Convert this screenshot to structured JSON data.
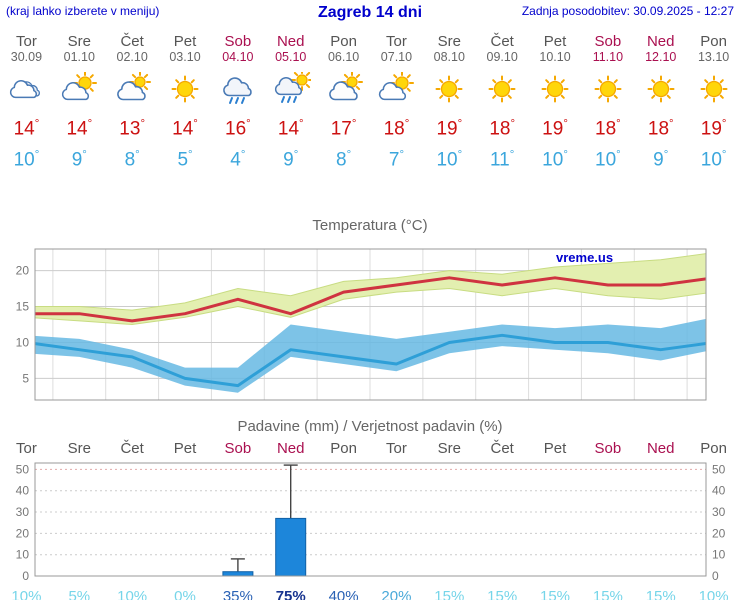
{
  "header": {
    "hint": "(kraj lahko izberete v meniju)",
    "title": "Zagreb 14 dni",
    "updated": "Zadnja posodobitev: 30.09.2025 - 12:27"
  },
  "symbols": {
    "degree": "°"
  },
  "watermark": "vreme.us",
  "days": [
    {
      "name": "Tor",
      "date": "30.09",
      "weekend": false,
      "icon": "cloudy",
      "tmax": 14,
      "tmin": 10,
      "pop_label": "10%"
    },
    {
      "name": "Sre",
      "date": "01.10",
      "weekend": false,
      "icon": "partly",
      "tmax": 14,
      "tmin": 9,
      "pop_label": "5%"
    },
    {
      "name": "Čet",
      "date": "02.10",
      "weekend": false,
      "icon": "mostly",
      "tmax": 13,
      "tmin": 8,
      "pop_label": "10%"
    },
    {
      "name": "Pet",
      "date": "03.10",
      "weekend": false,
      "icon": "sunny",
      "tmax": 14,
      "tmin": 5,
      "pop_label": "0%"
    },
    {
      "name": "Sob",
      "date": "04.10",
      "weekend": true,
      "icon": "rain",
      "tmax": 16,
      "tmin": 4,
      "pop_label": "35%"
    },
    {
      "name": "Ned",
      "date": "05.10",
      "weekend": true,
      "icon": "rain-sun",
      "tmax": 14,
      "tmin": 9,
      "pop_label": "75%"
    },
    {
      "name": "Pon",
      "date": "06.10",
      "weekend": false,
      "icon": "mostly",
      "tmax": 17,
      "tmin": 8,
      "pop_label": "40%"
    },
    {
      "name": "Tor",
      "date": "07.10",
      "weekend": false,
      "icon": "partly",
      "tmax": 18,
      "tmin": 7,
      "pop_label": "20%"
    },
    {
      "name": "Sre",
      "date": "08.10",
      "weekend": false,
      "icon": "sunny",
      "tmax": 19,
      "tmin": 10,
      "pop_label": "15%"
    },
    {
      "name": "Čet",
      "date": "09.10",
      "weekend": false,
      "icon": "sunny",
      "tmax": 18,
      "tmin": 11,
      "pop_label": "15%"
    },
    {
      "name": "Pet",
      "date": "10.10",
      "weekend": false,
      "icon": "sunny",
      "tmax": 19,
      "tmin": 10,
      "pop_label": "15%"
    },
    {
      "name": "Sob",
      "date": "11.10",
      "weekend": true,
      "icon": "sunny",
      "tmax": 18,
      "tmin": 10,
      "pop_label": "15%"
    },
    {
      "name": "Ned",
      "date": "12.10",
      "weekend": true,
      "icon": "sunny",
      "tmax": 18,
      "tmin": 9,
      "pop_label": "15%"
    },
    {
      "name": "Pon",
      "date": "13.10",
      "weekend": false,
      "icon": "sunny",
      "tmax": 19,
      "tmin": 10,
      "pop_label": "10%"
    }
  ],
  "chart_data": [
    {
      "type": "line",
      "title": "Temperatura (°C)",
      "categories": [
        "Tor",
        "Sre",
        "Čet",
        "Pet",
        "Sob",
        "Ned",
        "Pon",
        "Tor",
        "Sre",
        "Čet",
        "Pet",
        "Sob",
        "Ned",
        "Pon"
      ],
      "ylim": [
        2,
        23
      ],
      "yticks": [
        5,
        10,
        15,
        20
      ],
      "grid": true,
      "series": [
        {
          "name": "tmax",
          "values": [
            14,
            14,
            13,
            14,
            16,
            14,
            17,
            18,
            19,
            18,
            19,
            18,
            18,
            19
          ]
        },
        {
          "name": "tmin",
          "values": [
            10,
            9,
            8,
            5,
            4,
            9,
            8,
            7,
            10,
            11,
            10,
            10,
            9,
            10
          ]
        },
        {
          "name": "tmax_range_upper",
          "values": [
            15,
            15,
            14.5,
            15.5,
            17.5,
            16.5,
            18.5,
            19,
            20,
            19.5,
            20.5,
            21,
            21.5,
            22.5
          ]
        },
        {
          "name": "tmax_range_lower",
          "values": [
            13.5,
            13,
            12.5,
            13.5,
            15,
            13.5,
            16,
            17,
            17.5,
            16.5,
            17.5,
            16.5,
            16,
            17
          ]
        },
        {
          "name": "tmin_range_upper",
          "values": [
            11,
            10.5,
            9,
            6.5,
            6.5,
            12.5,
            11.5,
            10.5,
            11.5,
            12.5,
            12,
            12.5,
            12,
            13.5
          ]
        },
        {
          "name": "tmin_range_lower",
          "values": [
            8.5,
            8,
            6.5,
            4,
            3,
            8,
            7,
            6,
            8.5,
            9.5,
            9,
            8.5,
            7.5,
            9
          ]
        }
      ]
    },
    {
      "type": "bar",
      "title": "Padavine (mm) / Verjetnost padavin (%)",
      "categories": [
        "Tor",
        "Sre",
        "Čet",
        "Pet",
        "Sob",
        "Ned",
        "Pon",
        "Tor",
        "Sre",
        "Čet",
        "Pet",
        "Sob",
        "Ned",
        "Pon"
      ],
      "values": [
        0,
        0,
        0,
        0,
        2,
        27,
        0,
        0,
        0,
        0,
        0,
        0,
        0,
        0
      ],
      "whisker_high": [
        0,
        0,
        0,
        0,
        8,
        52,
        0,
        0,
        0,
        0,
        0,
        0,
        0,
        0
      ],
      "whisker_low": [
        0,
        0,
        0,
        0,
        0,
        3,
        0,
        0,
        0,
        0,
        0,
        0,
        0,
        0
      ],
      "probability_percent": [
        10,
        5,
        10,
        0,
        35,
        75,
        40,
        20,
        15,
        15,
        15,
        15,
        15,
        10
      ],
      "ylim": [
        0,
        53
      ],
      "yticks": [
        0,
        10,
        20,
        30,
        40,
        50
      ]
    }
  ],
  "colors": {
    "accent_blue": "#0000cc",
    "tmax_red": "#cc1111",
    "tmin_blue": "#3ba6dc",
    "weekend_red": "#aa1050",
    "day_gray": "#555555",
    "date_gray": "#666666",
    "chart_title_gray": "#666666",
    "axis_gray": "#777777",
    "grid_gray": "#cccccc",
    "grid_light": "#dddddd",
    "frame_gray": "#999999",
    "band_green": "#e3efb0",
    "band_green_edge": "#c8dc82",
    "band_blue": "#66b9e3",
    "line_red": "#cf3340",
    "line_blue": "#2e9fd7",
    "bar_blue": "#1d86da",
    "bar_border": "#1261a6",
    "whisker": "#444444",
    "rain_top_grid": "#e2a9a9",
    "pop_low": "#76d5e9",
    "pop_midlow": "#4aa9d9",
    "pop_mid": "#2a62b5",
    "pop_high": "#17338f",
    "scrollbar_gray": "#d5d5d5"
  }
}
